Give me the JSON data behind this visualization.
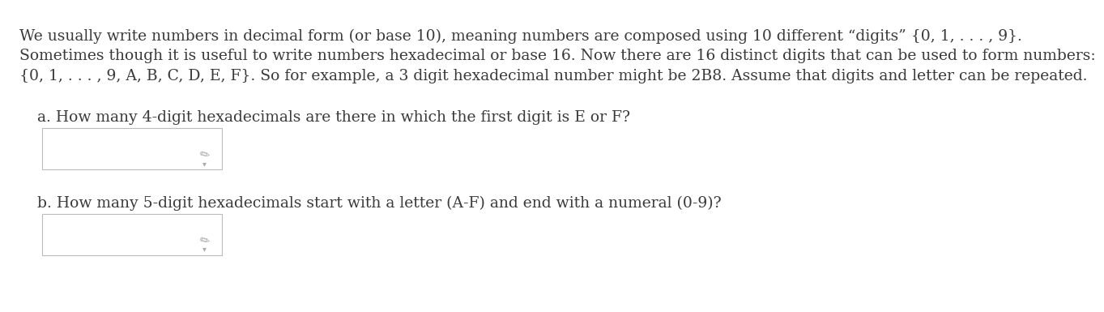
{
  "background_color": "#ffffff",
  "text_color": "#3a3a3a",
  "line1": "We usually write numbers in decimal form (or base 10), meaning numbers are composed using 10 different “digits” {0, 1, . . . , 9}.",
  "line2": "Sometimes though it is useful to write numbers hexadecimal or base 16. Now there are 16 distinct digits that can be used to form numbers:",
  "line3": "{0, 1, . . . , 9, A, B, C, D, E, F}. So for example, a 3 digit hexadecimal number might be 2B8. Assume that digits and letter can be repeated.",
  "question_a": "a. How many 4-digit hexadecimals are there in which the first digit is E or F?",
  "question_b": "b. How many 5-digit hexadecimals start with a letter (A-F) and end with a numeral (0-9)?",
  "font_size": 13.5,
  "pencil_color": "#aaaaaa"
}
